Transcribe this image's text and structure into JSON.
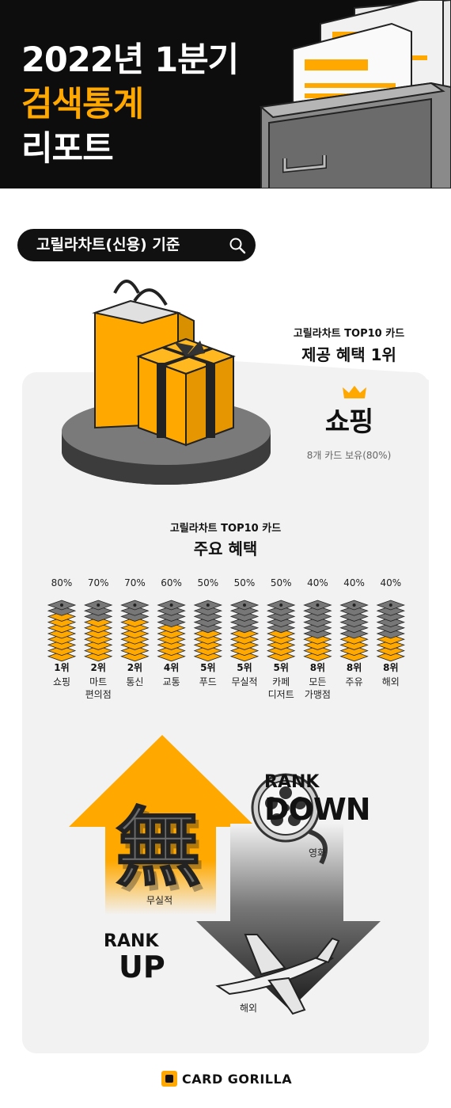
{
  "header": {
    "title_line1": "2022년 1분기",
    "title_line2": "검색통계",
    "title_line3": "리포트"
  },
  "basis_pill": {
    "label": "고릴라차트(신용) 기준",
    "icon": "search-icon"
  },
  "top_benefit": {
    "subtitle": "고릴라차트 TOP10 카드",
    "title": "제공 혜택 1위",
    "winner": "쇼핑",
    "note": "8개 카드 보유(80%)",
    "icon": "crown-icon"
  },
  "benefits_title": {
    "subtitle": "고릴라차트 TOP10 카드",
    "title": "주요 혜택"
  },
  "chart_data": {
    "type": "bar",
    "title": "주요 혜택",
    "subtitle": "고릴라차트 TOP10 카드",
    "unit": "%",
    "ylim": [
      0,
      100
    ],
    "categories": [
      "쇼핑",
      "마트 편의점",
      "통신",
      "교통",
      "푸드",
      "무실적",
      "카페 디저트",
      "모든 가맹점",
      "주유",
      "해외"
    ],
    "category_lines": [
      [
        "쇼핑"
      ],
      [
        "마트",
        "편의점"
      ],
      [
        "통신"
      ],
      [
        "교통"
      ],
      [
        "푸드"
      ],
      [
        "무실적"
      ],
      [
        "카페",
        "디저트"
      ],
      [
        "모든",
        "가맹점"
      ],
      [
        "주유"
      ],
      [
        "해외"
      ]
    ],
    "ranks": [
      "1위",
      "2위",
      "2위",
      "4위",
      "5위",
      "5위",
      "5위",
      "8위",
      "8위",
      "8위"
    ],
    "values": [
      80,
      70,
      70,
      60,
      50,
      50,
      50,
      40,
      40,
      40
    ],
    "value_labels": [
      "80%",
      "70%",
      "70%",
      "60%",
      "50%",
      "50%",
      "50%",
      "40%",
      "40%",
      "40%"
    ],
    "colors": {
      "filled": "#ffa800",
      "empty": "#777777"
    }
  },
  "rank_change": {
    "down_label_small": "RANK",
    "down_label_big": "DOWN",
    "down_items": [
      "영화",
      "해외"
    ],
    "up_label_small": "RANK",
    "up_label_big": "UP",
    "up_items": [
      "무실적"
    ],
    "up_glyph": "無"
  },
  "footer": {
    "brand": "CARD GORILLA"
  },
  "colors": {
    "accent": "#ffa800",
    "dark": "#0d0d0d",
    "panel": "#f2f2f2"
  }
}
